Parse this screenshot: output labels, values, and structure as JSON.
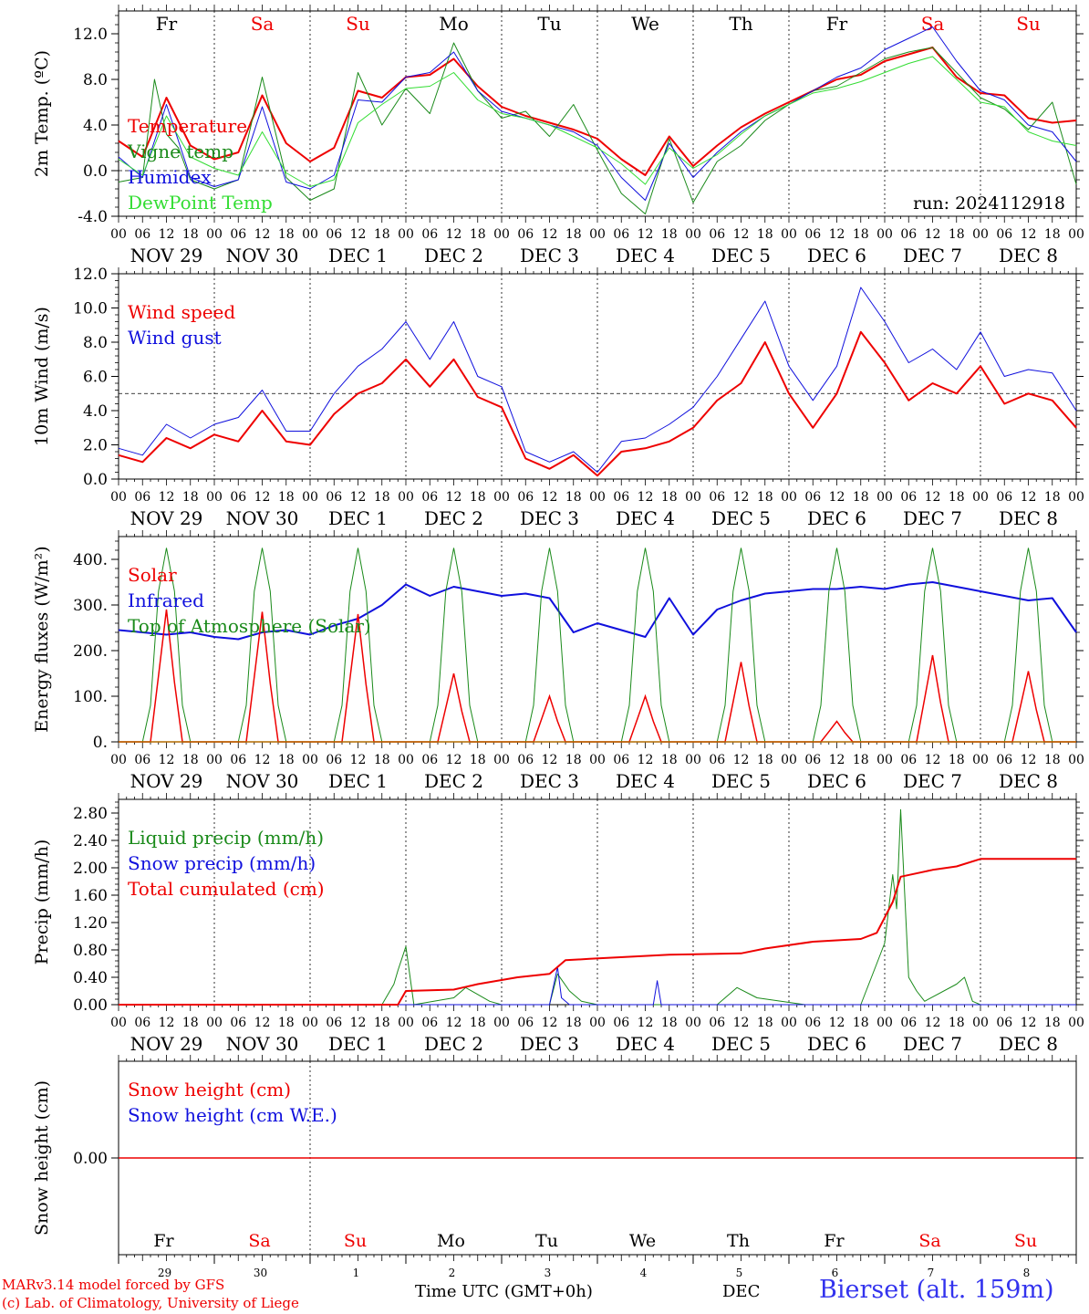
{
  "run_label": "run: 2024112918",
  "footer": {
    "credit_line1": "MARv3.14 model forced by GFS",
    "credit_line2": "(c) Lab. of Climatology, University of Liege",
    "time_axis_label": "Time UTC (GMT+0h)",
    "month_label": "DEC",
    "station": "Bierset (alt. 159m)"
  },
  "days": {
    "weekdays": [
      "Fr",
      "Sa",
      "Su",
      "Mo",
      "Tu",
      "We",
      "Th",
      "Fr",
      "Sa",
      "Su"
    ],
    "weekend": [
      false,
      true,
      true,
      false,
      false,
      false,
      false,
      false,
      true,
      true
    ],
    "date_labels": [
      "NOV 29",
      "NOV 30",
      "DEC  1",
      "DEC  2",
      "DEC  3",
      "DEC  4",
      "DEC  5",
      "DEC  6",
      "DEC  7",
      "DEC  8"
    ],
    "day_numbers": [
      "29",
      "30",
      "1",
      "2",
      "3",
      "4",
      "5",
      "6",
      "7",
      "8"
    ],
    "hour_ticks": [
      "00",
      "06",
      "12",
      "18"
    ],
    "final_hour": "00"
  },
  "colors": {
    "red": "#ee0000",
    "green": "#1a8a1a",
    "blue": "#1010dd",
    "lightgreen": "#33dd33",
    "weekend": "#ee0000",
    "text": "#000000"
  },
  "chart_data": [
    {
      "id": "temp",
      "type": "line",
      "ylabel": "2m Temp. (ºC)",
      "ylim": [
        -4,
        14
      ],
      "yticks": [
        "-4.0",
        "0.0",
        "4.0",
        "8.0",
        "12.0"
      ],
      "reference_line": 0,
      "legend": [
        {
          "label": "Temperature",
          "color": "#ee0000"
        },
        {
          "label": "Vigne temp",
          "color": "#1a8a1a"
        },
        {
          "label": "Humidex",
          "color": "#1010dd"
        },
        {
          "label": "DewPoint Temp",
          "color": "#33dd33"
        }
      ],
      "series": [
        {
          "name": "Temperature",
          "color": "#ee0000",
          "width": 2,
          "x": [
            0,
            6,
            12,
            18,
            24,
            30,
            36,
            42,
            48,
            54,
            60,
            66,
            72,
            78,
            84,
            90,
            96,
            102,
            108,
            114,
            120,
            126,
            132,
            138,
            144,
            150,
            156,
            162,
            168,
            174,
            180,
            186,
            192,
            198,
            204,
            210,
            216,
            222,
            228,
            234,
            240
          ],
          "y": [
            2.6,
            1.2,
            6.4,
            2.2,
            1.0,
            1.6,
            6.6,
            2.4,
            0.8,
            2.0,
            7.0,
            6.4,
            8.2,
            8.4,
            9.8,
            7.4,
            5.6,
            4.8,
            4.2,
            3.6,
            2.8,
            1.0,
            -0.4,
            3.0,
            0.4,
            2.2,
            3.8,
            5.0,
            6.0,
            7.0,
            8.0,
            8.4,
            9.6,
            10.2,
            10.8,
            8.2,
            6.8,
            6.6,
            4.6,
            4.2,
            4.4
          ]
        },
        {
          "name": "Vigne temp",
          "color": "#1a8a1a",
          "width": 1,
          "x": [
            0,
            6,
            9,
            12,
            15,
            18,
            24,
            30,
            36,
            42,
            48,
            54,
            60,
            66,
            72,
            78,
            84,
            90,
            96,
            102,
            108,
            114,
            120,
            126,
            132,
            138,
            144,
            150,
            156,
            162,
            168,
            174,
            180,
            186,
            192,
            198,
            204,
            210,
            216,
            222,
            228,
            234,
            240
          ],
          "y": [
            -1.0,
            -0.6,
            8.0,
            3.2,
            2.0,
            -0.8,
            -1.6,
            -0.8,
            8.2,
            -0.6,
            -2.6,
            -1.6,
            8.6,
            4.0,
            7.2,
            5.0,
            11.2,
            7.0,
            4.6,
            5.2,
            3.0,
            5.8,
            1.8,
            -2.0,
            -3.8,
            2.8,
            -2.8,
            0.8,
            2.2,
            4.4,
            5.8,
            7.0,
            7.4,
            8.6,
            9.8,
            10.4,
            10.8,
            8.6,
            6.4,
            5.4,
            3.6,
            6.0,
            -1.2
          ]
        },
        {
          "name": "Humidex",
          "color": "#1010dd",
          "width": 1,
          "x": [
            0,
            6,
            12,
            18,
            24,
            30,
            36,
            42,
            48,
            54,
            60,
            66,
            72,
            78,
            84,
            90,
            96,
            102,
            108,
            114,
            120,
            126,
            132,
            138,
            144,
            150,
            156,
            162,
            168,
            174,
            180,
            186,
            192,
            198,
            204,
            210,
            216,
            222,
            228,
            234,
            240
          ],
          "y": [
            1.2,
            -0.6,
            5.8,
            -0.6,
            -1.4,
            -0.8,
            5.6,
            -1.0,
            -1.6,
            -0.4,
            6.2,
            6.0,
            8.2,
            8.6,
            10.4,
            7.0,
            5.2,
            4.6,
            4.0,
            3.4,
            2.2,
            -0.6,
            -2.6,
            2.4,
            -0.6,
            1.6,
            3.4,
            4.8,
            5.8,
            7.0,
            8.2,
            9.0,
            10.6,
            11.6,
            12.6,
            9.6,
            7.0,
            6.2,
            4.0,
            3.4,
            0.8
          ]
        },
        {
          "name": "DewPoint Temp",
          "color": "#33dd33",
          "width": 1,
          "x": [
            0,
            6,
            12,
            18,
            24,
            30,
            36,
            42,
            48,
            54,
            60,
            66,
            72,
            78,
            84,
            90,
            96,
            102,
            108,
            114,
            120,
            126,
            132,
            138,
            144,
            150,
            156,
            162,
            168,
            174,
            180,
            186,
            192,
            198,
            204,
            210,
            216,
            222,
            228,
            234,
            240
          ],
          "y": [
            1.0,
            -0.4,
            4.8,
            1.2,
            0.2,
            -0.4,
            3.4,
            -0.2,
            -1.4,
            -0.8,
            4.2,
            5.8,
            7.2,
            7.4,
            8.6,
            6.2,
            5.0,
            4.6,
            4.0,
            3.0,
            2.0,
            0.6,
            -1.2,
            2.0,
            0.2,
            1.4,
            3.2,
            4.8,
            5.8,
            6.8,
            7.2,
            7.8,
            8.6,
            9.4,
            10.0,
            8.0,
            6.0,
            5.6,
            3.4,
            2.6,
            2.2
          ]
        }
      ]
    },
    {
      "id": "wind",
      "type": "line",
      "ylabel": "10m Wind (m/s)",
      "ylim": [
        0,
        12
      ],
      "yticks": [
        "0.0",
        "2.0",
        "4.0",
        "6.0",
        "8.0",
        "10.0",
        "12.0"
      ],
      "reference_line": 5,
      "legend": [
        {
          "label": "Wind speed",
          "color": "#ee0000"
        },
        {
          "label": "Wind gust",
          "color": "#1010dd"
        }
      ],
      "series": [
        {
          "name": "Wind speed",
          "color": "#ee0000",
          "width": 2,
          "x": [
            0,
            6,
            12,
            18,
            24,
            30,
            36,
            42,
            48,
            54,
            60,
            66,
            72,
            78,
            84,
            90,
            96,
            102,
            108,
            114,
            120,
            126,
            132,
            138,
            144,
            150,
            156,
            162,
            168,
            174,
            180,
            186,
            192,
            198,
            204,
            210,
            216,
            222,
            228,
            234,
            240
          ],
          "y": [
            1.4,
            1.0,
            2.4,
            1.8,
            2.6,
            2.2,
            4.0,
            2.2,
            2.0,
            3.8,
            5.0,
            5.6,
            7.0,
            5.4,
            7.0,
            4.8,
            4.2,
            1.2,
            0.6,
            1.4,
            0.2,
            1.6,
            1.8,
            2.2,
            3.0,
            4.6,
            5.6,
            8.0,
            5.0,
            3.0,
            5.0,
            8.6,
            6.8,
            4.6,
            5.6,
            5.0,
            6.6,
            4.4,
            5.0,
            4.6,
            3.0
          ]
        },
        {
          "name": "Wind gust",
          "color": "#1010dd",
          "width": 1,
          "x": [
            0,
            6,
            12,
            18,
            24,
            30,
            36,
            42,
            48,
            54,
            60,
            66,
            72,
            78,
            84,
            90,
            96,
            102,
            108,
            114,
            120,
            126,
            132,
            138,
            144,
            150,
            156,
            162,
            168,
            174,
            180,
            186,
            192,
            198,
            204,
            210,
            216,
            222,
            228,
            234,
            240
          ],
          "y": [
            1.8,
            1.4,
            3.2,
            2.4,
            3.2,
            3.6,
            5.2,
            2.8,
            2.8,
            5.0,
            6.6,
            7.6,
            9.2,
            7.0,
            9.2,
            6.0,
            5.4,
            1.6,
            1.0,
            1.6,
            0.4,
            2.2,
            2.4,
            3.2,
            4.2,
            6.0,
            8.2,
            10.4,
            6.6,
            4.6,
            6.6,
            11.2,
            9.2,
            6.8,
            7.6,
            6.4,
            8.6,
            6.0,
            6.4,
            6.2,
            4.0
          ]
        }
      ]
    },
    {
      "id": "energy",
      "type": "line",
      "ylabel": "Energy fluxes (W/m²)",
      "ylim": [
        0,
        450
      ],
      "yticks": [
        "0.",
        "100.",
        "200.",
        "300.",
        "400."
      ],
      "reference_line": null,
      "legend": [
        {
          "label": "Solar",
          "color": "#ee0000"
        },
        {
          "label": "Infrared",
          "color": "#1010dd"
        },
        {
          "label": "Top of Atmosphere (Solar)",
          "color": "#1a8a1a"
        }
      ],
      "solar_peaks": [
        290,
        285,
        280,
        150,
        100,
        100,
        175,
        45,
        190,
        155
      ],
      "toa_peak": 425,
      "series": [
        {
          "name": "Infrared",
          "color": "#1010dd",
          "width": 2,
          "x": [
            0,
            6,
            12,
            18,
            24,
            30,
            36,
            42,
            48,
            54,
            60,
            66,
            72,
            78,
            84,
            90,
            96,
            102,
            108,
            114,
            120,
            126,
            132,
            138,
            144,
            150,
            156,
            162,
            168,
            174,
            180,
            186,
            192,
            198,
            204,
            210,
            216,
            222,
            228,
            234,
            240
          ],
          "y": [
            245,
            240,
            235,
            240,
            230,
            225,
            240,
            245,
            235,
            255,
            270,
            300,
            345,
            320,
            340,
            330,
            320,
            325,
            315,
            240,
            260,
            245,
            230,
            315,
            235,
            290,
            310,
            325,
            330,
            335,
            335,
            340,
            335,
            345,
            350,
            340,
            330,
            320,
            310,
            315,
            240
          ]
        }
      ]
    },
    {
      "id": "precip",
      "type": "line",
      "ylabel": "Precip (mm/h)",
      "ylim": [
        0,
        3.0
      ],
      "yticks": [
        "0.00",
        "0.40",
        "0.80",
        "1.20",
        "1.60",
        "2.00",
        "2.40",
        "2.80"
      ],
      "reference_line": null,
      "legend": [
        {
          "label": "Liquid precip (mm/h)",
          "color": "#1a8a1a"
        },
        {
          "label": "Snow precip (mm/h)",
          "color": "#1010dd"
        },
        {
          "label": "Total cumulated (cm)",
          "color": "#ee0000"
        }
      ],
      "series": [
        {
          "name": "Liquid precip (mm/h)",
          "color": "#1a8a1a",
          "width": 1,
          "x": [
            0,
            66,
            69,
            70,
            72,
            74,
            84,
            87,
            90,
            93,
            96,
            108,
            110,
            113,
            116,
            120,
            150,
            155,
            160,
            166,
            172,
            186,
            190,
            192,
            194,
            195,
            196,
            198,
            200,
            202,
            210,
            212,
            214,
            216,
            240
          ],
          "y": [
            0,
            0,
            0.3,
            0.5,
            0.85,
            0,
            0.1,
            0.25,
            0.15,
            0.05,
            0,
            0,
            0.45,
            0.2,
            0.05,
            0,
            0,
            0.25,
            0.1,
            0.05,
            0,
            0,
            0.6,
            0.9,
            1.9,
            1.4,
            2.85,
            0.4,
            0.2,
            0.05,
            0.3,
            0.4,
            0.05,
            0,
            0
          ]
        },
        {
          "name": "Snow precip (mm/h)",
          "color": "#1010dd",
          "width": 1,
          "x": [
            0,
            108,
            110,
            111,
            113,
            134,
            135,
            136,
            240
          ],
          "y": [
            0,
            0,
            0.55,
            0.1,
            0,
            0,
            0.35,
            0,
            0
          ]
        },
        {
          "name": "Total cumulated (cm)",
          "color": "#ee0000",
          "width": 2,
          "x": [
            0,
            70,
            72,
            84,
            90,
            100,
            108,
            112,
            118,
            138,
            156,
            162,
            174,
            186,
            190,
            194,
            196,
            204,
            210,
            216,
            240
          ],
          "y": [
            0,
            0,
            0.2,
            0.22,
            0.3,
            0.4,
            0.45,
            0.65,
            0.67,
            0.73,
            0.75,
            0.82,
            0.92,
            0.96,
            1.05,
            1.5,
            1.87,
            1.97,
            2.02,
            2.13,
            2.13
          ]
        }
      ]
    },
    {
      "id": "snow",
      "type": "line",
      "ylabel": "Snow height (cm)",
      "ylim": [
        -1,
        1
      ],
      "yticks": [
        "0.00"
      ],
      "reference_line": null,
      "legend": [
        {
          "label": "Snow height (cm)",
          "color": "#ee0000"
        },
        {
          "label": "Snow height (cm W.E.)",
          "color": "#1010dd"
        }
      ],
      "series": [
        {
          "name": "Snow height (cm)",
          "color": "#ee0000",
          "width": 1.5,
          "x": [
            0,
            240
          ],
          "y": [
            0,
            0
          ]
        }
      ]
    }
  ]
}
